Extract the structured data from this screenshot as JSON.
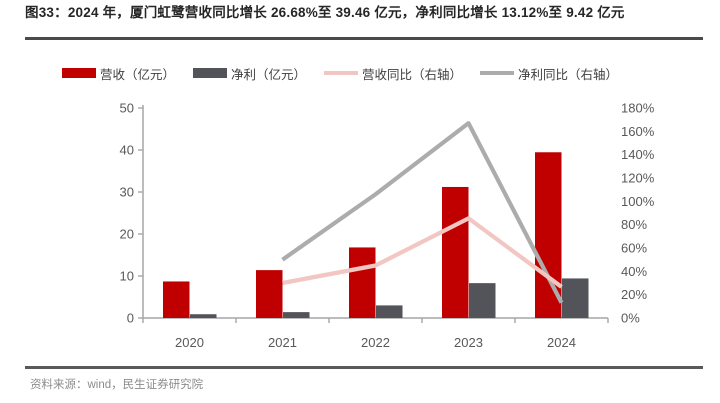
{
  "figure": {
    "title": "图33：2024 年，厦门虹鹭营收同比增长 26.68%至 39.46 亿元，净利同比增长 13.12%至 9.42 亿元",
    "source": "资料来源：wind，民生证券研究院"
  },
  "colors": {
    "revenue_bar": "#c00000",
    "profit_bar": "#53535a",
    "revenue_yoy_line": "#f2c6c2",
    "profit_yoy_line": "#acacac",
    "axis": "#a6a6a6",
    "axis_text": "#595959"
  },
  "legend": [
    {
      "label": "营收（亿元）",
      "type": "bar",
      "color": "#c00000"
    },
    {
      "label": "净利（亿元）",
      "type": "bar",
      "color": "#53535a"
    },
    {
      "label": "营收同比（右轴）",
      "type": "line",
      "color": "#f2c6c2"
    },
    {
      "label": "净利同比（右轴）",
      "type": "line",
      "color": "#acacac"
    }
  ],
  "chart_data": {
    "type": "bar",
    "subtype": "combo-bar-line-dual-axis",
    "categories": [
      "2020",
      "2021",
      "2022",
      "2023",
      "2024"
    ],
    "series": [
      {
        "name": "营收（亿元）",
        "type": "bar",
        "axis": "left",
        "color": "#c00000",
        "values": [
          8.7,
          11.4,
          16.8,
          31.2,
          39.46
        ]
      },
      {
        "name": "净利（亿元）",
        "type": "bar",
        "axis": "left",
        "color": "#53535a",
        "values": [
          0.9,
          1.4,
          3.0,
          8.3,
          9.42
        ]
      },
      {
        "name": "营收同比（右轴）",
        "type": "line",
        "axis": "right",
        "color": "#f2c6c2",
        "values": [
          null,
          30,
          45,
          85.4,
          26.68
        ]
      },
      {
        "name": "净利同比（右轴）",
        "type": "line",
        "axis": "right",
        "color": "#acacac",
        "values": [
          null,
          50,
          106,
          167,
          13.12
        ]
      }
    ],
    "left_axis": {
      "min": 0,
      "max": 50,
      "step": 10,
      "tick_labels": [
        "0",
        "10",
        "20",
        "30",
        "40",
        "50"
      ]
    },
    "right_axis": {
      "min": 0,
      "max": 180,
      "step": 20,
      "tick_labels": [
        "0%",
        "20%",
        "40%",
        "60%",
        "80%",
        "100%",
        "120%",
        "140%",
        "160%",
        "180%"
      ]
    },
    "grid": false,
    "legend_position": "top",
    "title": "2024 年，厦门虹鹭营收同比增长 26.68%至 39.46 亿元，净利同比增长 13.12%至 9.42 亿元"
  }
}
